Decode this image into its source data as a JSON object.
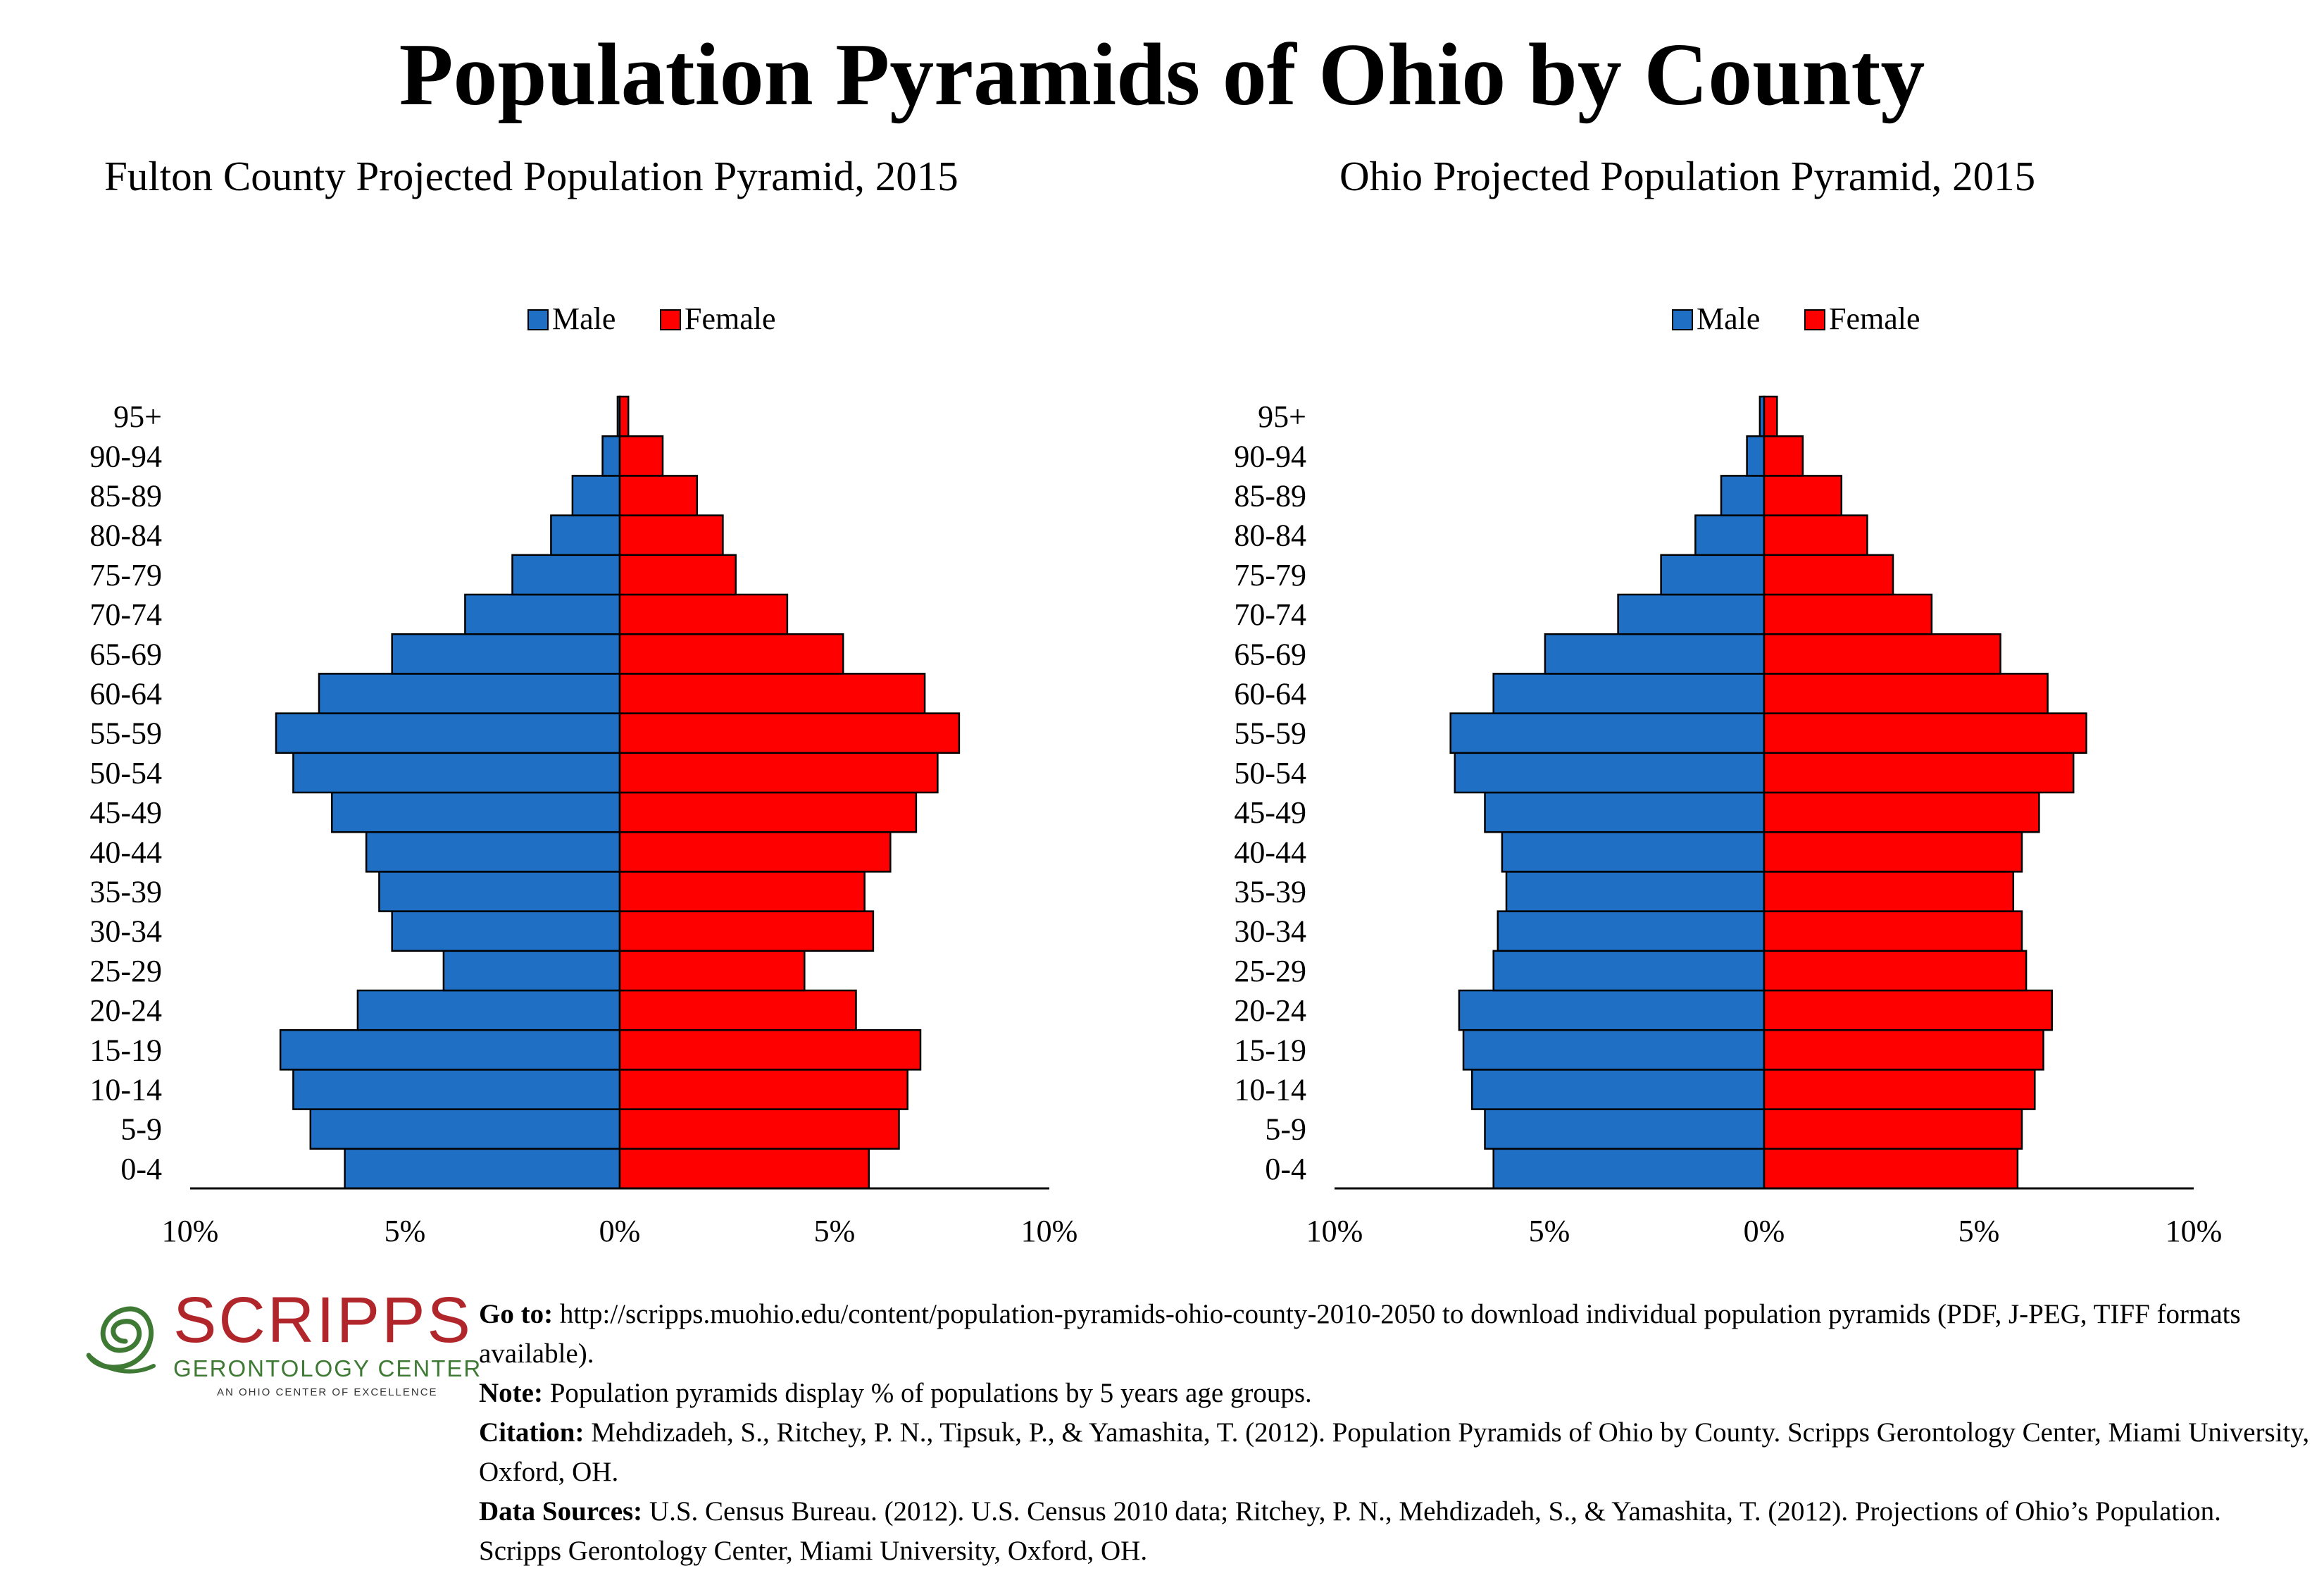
{
  "title": "Population Pyramids of Ohio by County",
  "colors": {
    "male": "#1f6fc5",
    "female": "#ff0000",
    "stroke": "#000000",
    "logo_red": "#b1262b",
    "logo_green": "#3f7a35"
  },
  "chart_data": [
    {
      "type": "bar",
      "orientation": "horizontal-pyramid",
      "title": "Fulton County Projected Population Pyramid, 2015",
      "categories": [
        "0-4",
        "5-9",
        "10-14",
        "15-19",
        "20-24",
        "25-29",
        "30-34",
        "35-39",
        "40-44",
        "45-49",
        "50-54",
        "55-59",
        "60-64",
        "65-69",
        "70-74",
        "75-79",
        "80-84",
        "85-89",
        "90-94",
        "95+"
      ],
      "series": [
        {
          "name": "Male",
          "values": [
            6.4,
            7.2,
            7.6,
            7.9,
            6.1,
            4.1,
            5.3,
            5.6,
            5.9,
            6.7,
            7.6,
            8.0,
            7.0,
            5.3,
            3.6,
            2.5,
            1.6,
            1.1,
            0.4,
            0.05
          ]
        },
        {
          "name": "Female",
          "values": [
            5.8,
            6.5,
            6.7,
            7.0,
            5.5,
            4.3,
            5.9,
            5.7,
            6.3,
            6.9,
            7.4,
            7.9,
            7.1,
            5.2,
            3.9,
            2.7,
            2.4,
            1.8,
            1.0,
            0.2
          ]
        }
      ],
      "xlim": [
        -10,
        10
      ],
      "x_tick_labels": [
        "10%",
        "5%",
        "0%",
        "5%",
        "10%"
      ],
      "legend_position": "top-center"
    },
    {
      "type": "bar",
      "orientation": "horizontal-pyramid",
      "title": "Ohio Projected Population Pyramid, 2015",
      "categories": [
        "0-4",
        "5-9",
        "10-14",
        "15-19",
        "20-24",
        "25-29",
        "30-34",
        "35-39",
        "40-44",
        "45-49",
        "50-54",
        "55-59",
        "60-64",
        "65-69",
        "70-74",
        "75-79",
        "80-84",
        "85-89",
        "90-94",
        "95+"
      ],
      "series": [
        {
          "name": "Male",
          "values": [
            6.3,
            6.5,
            6.8,
            7.0,
            7.1,
            6.3,
            6.2,
            6.0,
            6.1,
            6.5,
            7.2,
            7.3,
            6.3,
            5.1,
            3.4,
            2.4,
            1.6,
            1.0,
            0.4,
            0.1
          ]
        },
        {
          "name": "Female",
          "values": [
            5.9,
            6.0,
            6.3,
            6.5,
            6.7,
            6.1,
            6.0,
            5.8,
            6.0,
            6.4,
            7.2,
            7.5,
            6.6,
            5.5,
            3.9,
            3.0,
            2.4,
            1.8,
            0.9,
            0.3
          ]
        }
      ],
      "xlim": [
        -10,
        10
      ],
      "x_tick_labels": [
        "10%",
        "5%",
        "0%",
        "5%",
        "10%"
      ],
      "legend_position": "top-center"
    }
  ],
  "logo": {
    "name": "SCRIPPS",
    "subtitle": "GERONTOLOGY CENTER",
    "tagline": "AN OHIO CENTER OF EXCELLENCE"
  },
  "notes": [
    {
      "label": "Go to:",
      "text": " http://scripps.muohio.edu/content/population-pyramids-ohio-county-2010-2050 to download individual population pyramids (PDF, J-PEG, TIFF formats available)."
    },
    {
      "label": "Note:",
      "text": " Population pyramids display % of populations by 5 years age groups."
    },
    {
      "label": "Citation:",
      "text": " Mehdizadeh, S., Ritchey, P. N., Tipsuk, P., & Yamashita, T. (2012). Population Pyramids of Ohio by County. Scripps Gerontology Center, Miami University, Oxford, OH."
    },
    {
      "label": "Data Sources:",
      "text": " U.S. Census Bureau. (2012). U.S. Census 2010 data; Ritchey, P. N., Mehdizadeh, S., & Yamashita, T. (2012). Projections of Ohio’s Population. Scripps Gerontology Center, Miami University, Oxford, OH."
    }
  ]
}
